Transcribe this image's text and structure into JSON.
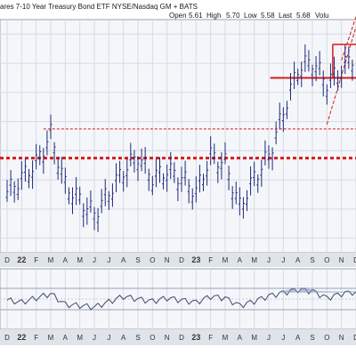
{
  "header": {
    "title": "ares 7-10 Year Treasury Bond ETF",
    "exchange": "NYSE/Nasdaq GM + BATS",
    "open_label": "Open",
    "open": "5.61",
    "high_label": "High",
    "high": "5.70",
    "low_label": "Low",
    "low": "5.58",
    "last_label": "Last",
    "last": "5.68",
    "volume_label": "Volu"
  },
  "colors": {
    "price_bar": "#1e2a78",
    "support_line": "#d81b1b",
    "grid": "#d6dbe3",
    "background": "#f4f6fa",
    "axis_band": "#dfe3ea",
    "indicator": "#3b4a6b",
    "indicator_fill": "#8a97c2"
  },
  "chart_data": [
    {
      "type": "ohlc",
      "title": "",
      "x_tick_labels": [
        "D",
        "22",
        "F",
        "M",
        "A",
        "M",
        "J",
        "J",
        "A",
        "S",
        "O",
        "N",
        "D",
        "23",
        "F",
        "M",
        "A",
        "M",
        "J",
        "J",
        "A",
        "S",
        "O",
        "N",
        "D"
      ],
      "ylim": [
        4.3,
        5.9
      ],
      "x": [
        "2021-12",
        "2022-01",
        "2022-02",
        "2022-03",
        "2022-04",
        "2022-05",
        "2022-06",
        "2022-07",
        "2022-08",
        "2022-09",
        "2022-10",
        "2022-11",
        "2022-12",
        "2023-01",
        "2023-02",
        "2023-03",
        "2023-04",
        "2023-05",
        "2023-06",
        "2023-07",
        "2023-08",
        "2023-09",
        "2023-10",
        "2023-11",
        "2023-12"
      ],
      "series": [
        {
          "values": [
            4.7,
            4.8,
            4.9,
            5.1,
            4.75,
            4.65,
            4.55,
            4.7,
            4.85,
            4.95,
            4.8,
            4.85,
            4.8,
            4.7,
            4.95,
            4.9,
            4.6,
            4.8,
            4.95,
            5.25,
            5.55,
            5.6,
            5.45,
            5.55,
            5.65
          ]
        }
      ],
      "annotations": {
        "support_level": 4.95,
        "mid_level": 5.15,
        "upper_level": 5.5,
        "top_box_level": 5.73
      }
    },
    {
      "type": "line",
      "title": "",
      "x_tick_labels": [
        "D",
        "22",
        "F",
        "M",
        "A",
        "M",
        "J",
        "J",
        "A",
        "S",
        "O",
        "N",
        "D",
        "23",
        "F",
        "M",
        "A",
        "M",
        "J",
        "J",
        "A",
        "S",
        "O",
        "N",
        "D"
      ],
      "ylim": [
        0,
        100
      ],
      "series": [
        {
          "values": [
            48,
            44,
            52,
            60,
            40,
            38,
            35,
            45,
            55,
            50,
            46,
            52,
            48,
            44,
            55,
            52,
            38,
            46,
            56,
            62,
            68,
            65,
            52,
            60,
            64
          ]
        }
      ]
    }
  ]
}
